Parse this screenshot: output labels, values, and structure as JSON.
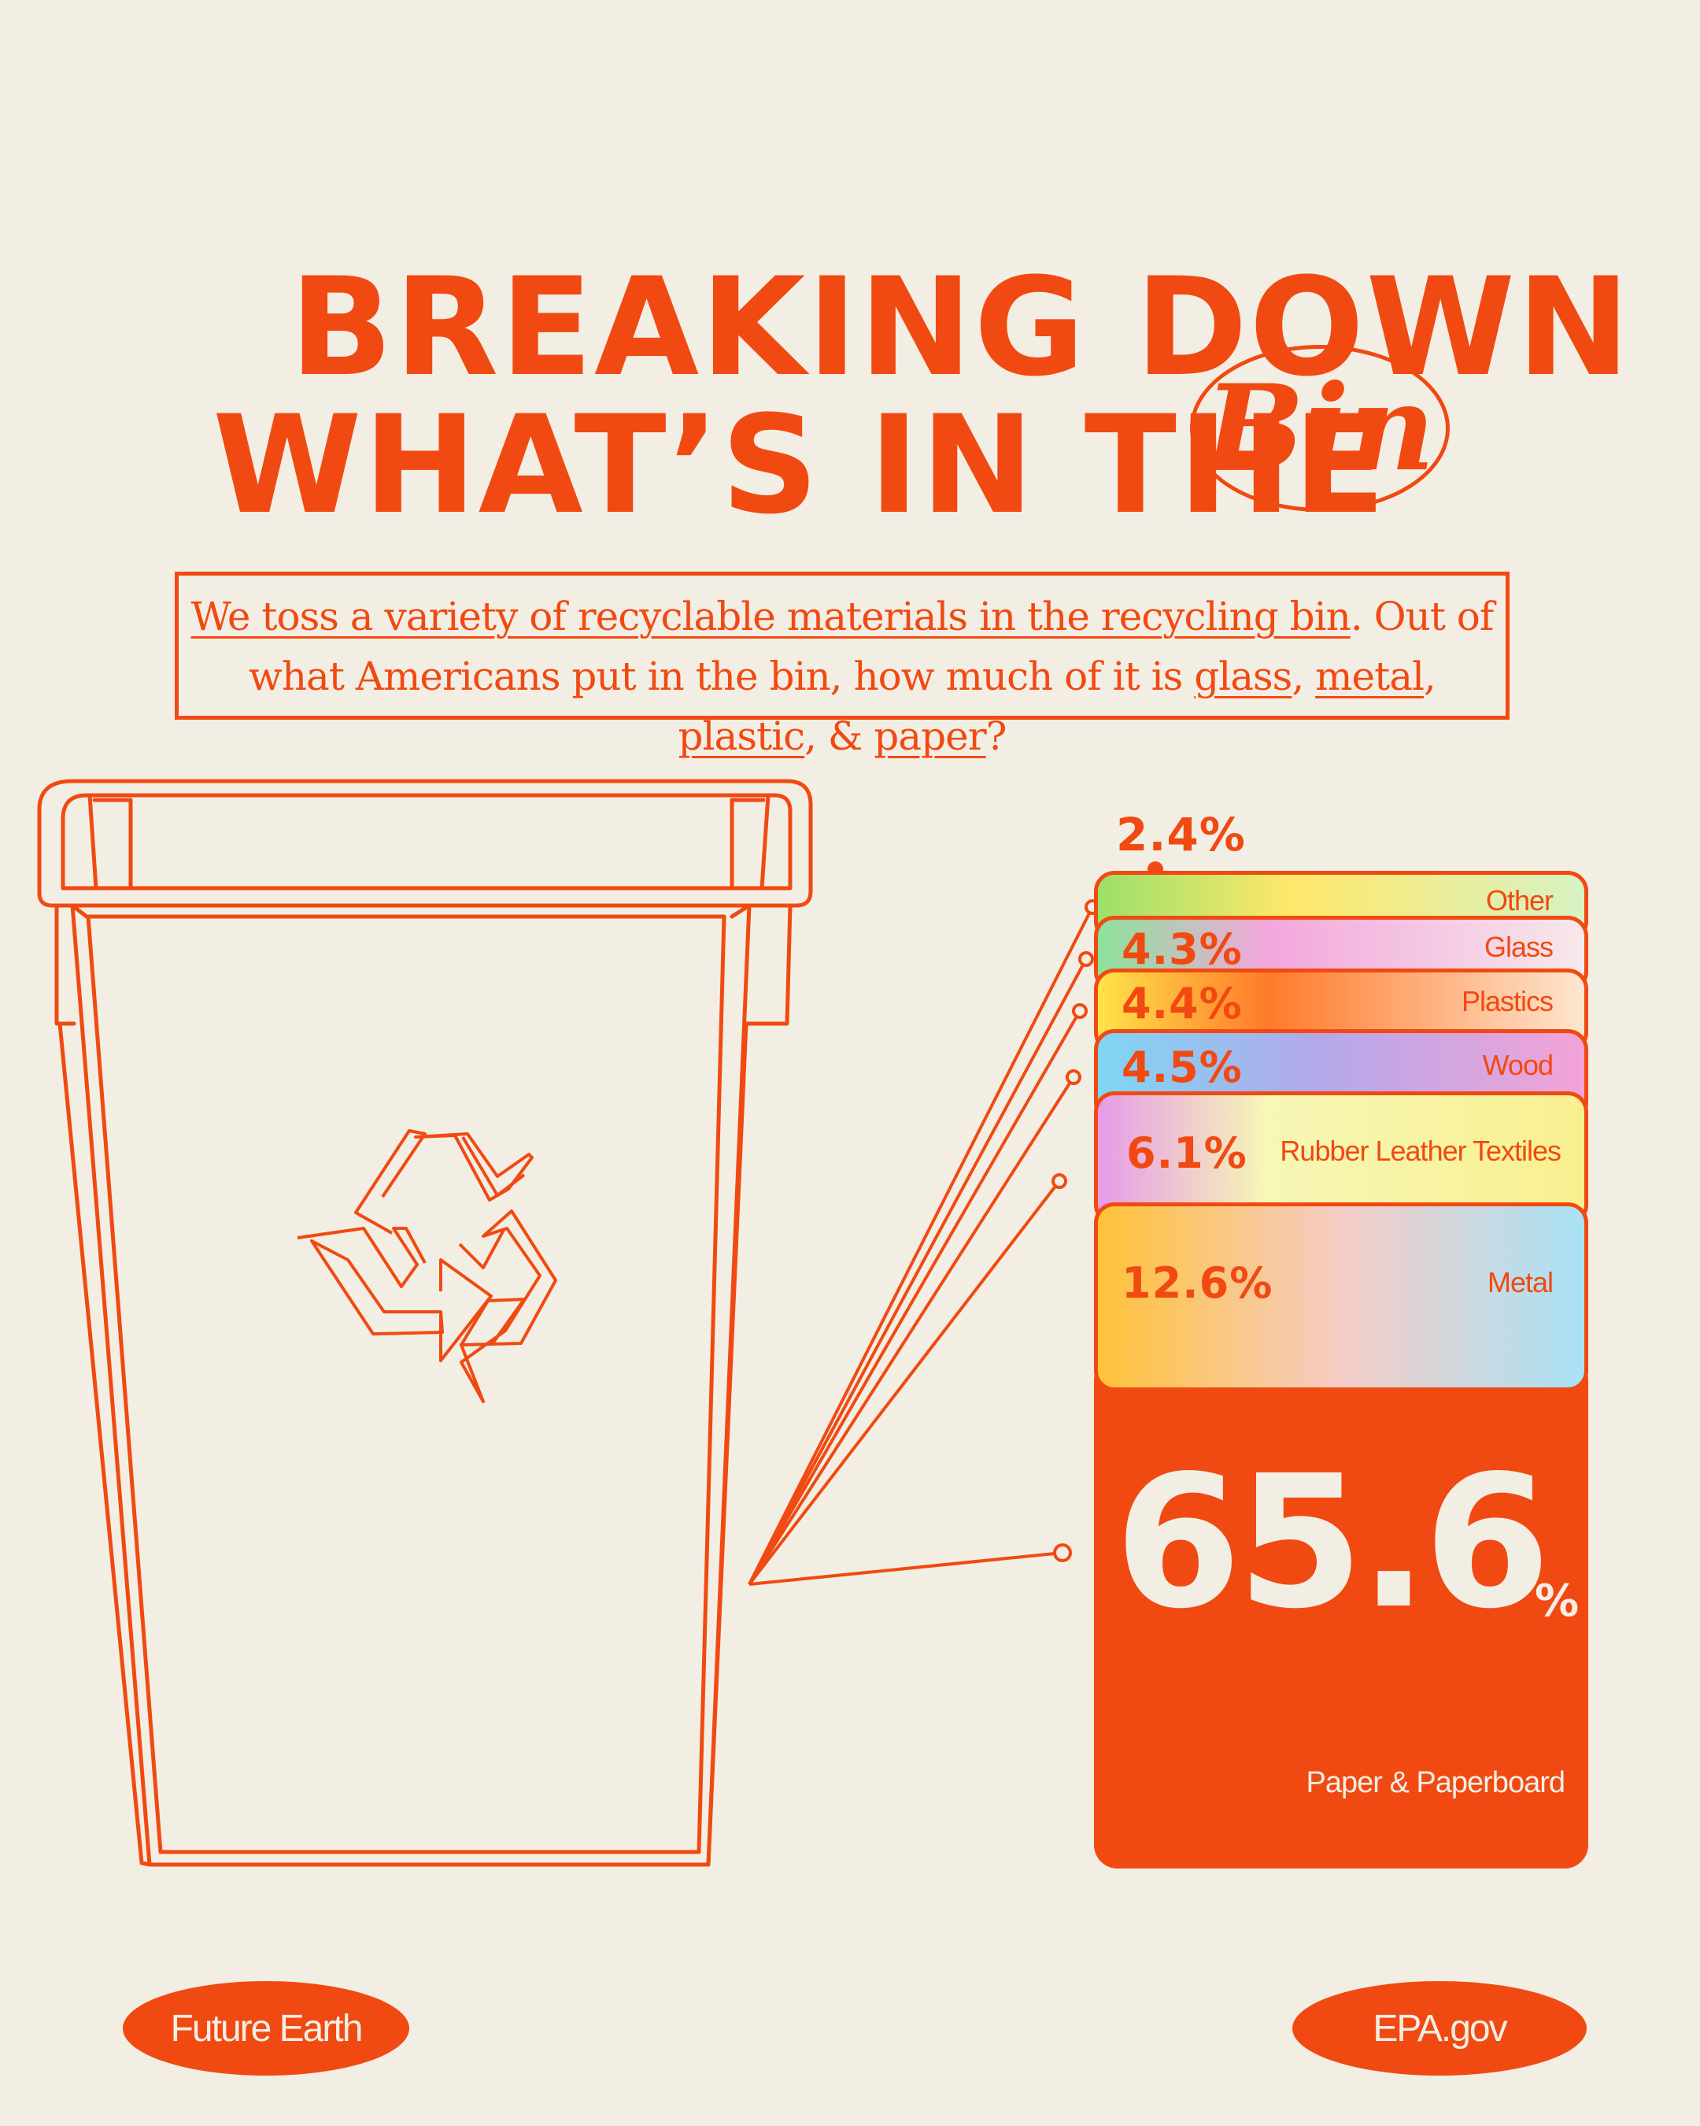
{
  "title": {
    "line1": "BREAKING DOWN",
    "line2": "WHAT’S IN THE",
    "emphasis": "Bin"
  },
  "intro": {
    "p1": "We toss a variety of recyclable materials in the recycling bin",
    "p2": ". Out of what Americans put in the bin, how much of it is ",
    "m1": "glass",
    "m2": "metal",
    "m3": "plastic",
    "m4": "paper",
    "sep": ", ",
    "amp": ", & ",
    "end": "?"
  },
  "chart_data": {
    "type": "stacked-bar",
    "unit": "%",
    "categories": [
      "Other",
      "Glass",
      "Plastics",
      "Wood",
      "Rubber Leather Textiles",
      "Metal",
      "Paper & Paperboard"
    ],
    "values": [
      2.4,
      4.3,
      4.4,
      4.5,
      6.1,
      12.6,
      65.6
    ],
    "value_labels": [
      "2.4%",
      "4.3%",
      "4.4%",
      "4.5%",
      "6.1%",
      "12.6%",
      "65.6"
    ],
    "percent_sign": "%"
  },
  "footer": {
    "left": "Future Earth",
    "right": "EPA.gov"
  },
  "colors": {
    "accent": "#f04a12",
    "background": "#f3eee4"
  },
  "icons": {
    "bin": "trash-bin-outline",
    "recycle": "recycle-icon"
  }
}
